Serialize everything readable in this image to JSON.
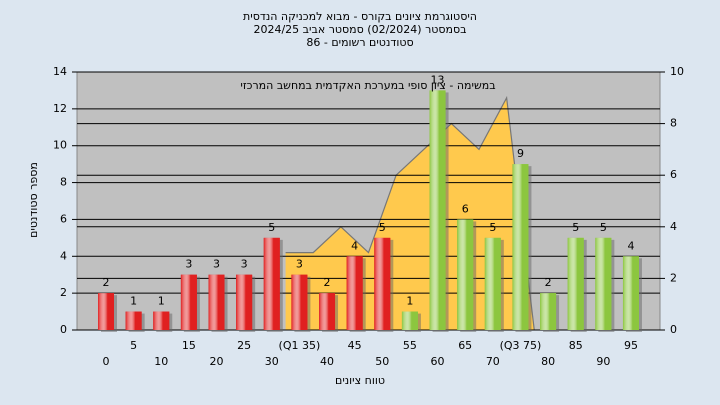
{
  "chart_data": {
    "type": "bar",
    "title_lines": [
      "היסטוגרמת ציונים בקורס - מבוא למכניקה הנדסית",
      "בסמסטר  (02/2024)  סמסטר אביב 2024/25",
      "סטודנטים רשומים - 86"
    ],
    "annotation": "במשימה - ציון סופי במערכת האקדמית במחשב המרכזי",
    "x_label": "טווח ציונים",
    "y_label": "מספר סטודנטים",
    "categories": [
      "0",
      "5",
      "10",
      "15",
      "20",
      "25",
      "30",
      "(Q1 35)",
      "40",
      "45",
      "50",
      "55",
      "60",
      "65",
      "70",
      "(Q3 75)",
      "80",
      "85",
      "90",
      "95"
    ],
    "series": [
      {
        "type": "bar",
        "values": [
          2,
          1,
          1,
          3,
          3,
          3,
          5,
          3,
          2,
          4,
          5,
          1,
          13,
          6,
          5,
          9,
          2,
          5,
          5,
          4
        ],
        "colors": [
          "#e02020",
          "#e02020",
          "#e02020",
          "#e02020",
          "#e02020",
          "#e02020",
          "#e02020",
          "#e02020",
          "#e02020",
          "#e02020",
          "#e02020",
          "#8cc63f",
          "#8cc63f",
          "#8cc63f",
          "#8cc63f",
          "#8cc63f",
          "#8cc63f",
          "#8cc63f",
          "#8cc63f",
          "#8cc63f"
        ]
      },
      {
        "type": "area",
        "axis": "y2",
        "color": "#ffc94d",
        "values": [
          null,
          null,
          null,
          null,
          null,
          null,
          null,
          3,
          3,
          4,
          3,
          6,
          7,
          8,
          7,
          9,
          0,
          null,
          null,
          null
        ]
      }
    ],
    "ylim": [
      0,
      14
    ],
    "yticks": [
      0,
      2,
      4,
      6,
      8,
      10,
      12,
      14
    ],
    "y2lim": [
      0,
      10
    ],
    "y2ticks": [
      0,
      2,
      4,
      6,
      8,
      10
    ],
    "grid": true
  }
}
